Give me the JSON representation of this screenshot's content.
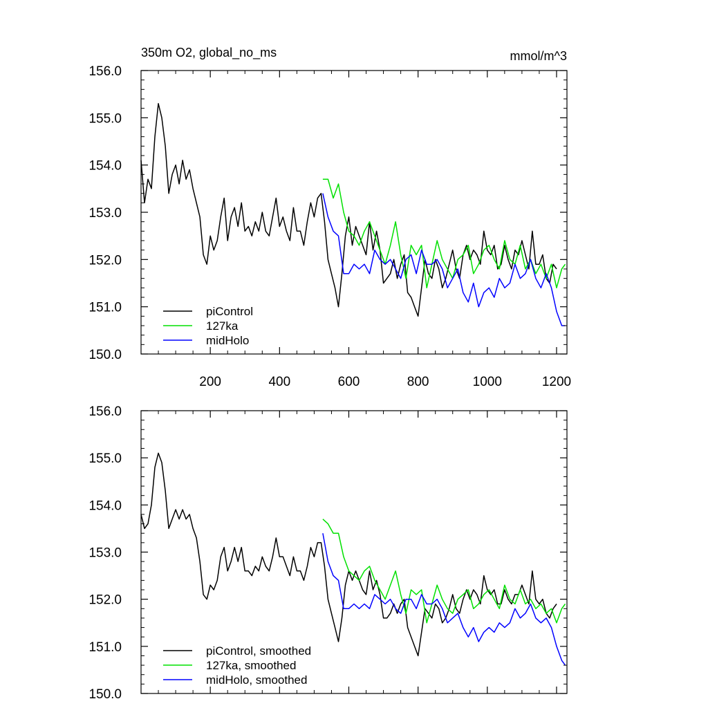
{
  "chart_data": [
    {
      "type": "line",
      "title": "350m O2, global_no_ms",
      "units": "mmol/m^3",
      "ylim": [
        150,
        156
      ],
      "xlim": [
        0,
        1230
      ],
      "yticks": [
        "150.0",
        "151.0",
        "152.0",
        "153.0",
        "154.0",
        "155.0",
        "156.0"
      ],
      "ytick_values": [
        150,
        151,
        152,
        153,
        154,
        155,
        156
      ],
      "xticks": [
        "200",
        "400",
        "600",
        "800",
        "1000",
        "1200"
      ],
      "xtick_values": [
        200,
        400,
        600,
        800,
        1000,
        1200
      ],
      "legend_position": "bottom-left",
      "series": [
        {
          "name": "piControl",
          "color": "#000000",
          "x": [
            0,
            10,
            20,
            30,
            40,
            50,
            60,
            70,
            80,
            90,
            100,
            110,
            120,
            130,
            140,
            150,
            160,
            170,
            180,
            190,
            200,
            210,
            220,
            230,
            240,
            250,
            260,
            270,
            280,
            290,
            300,
            310,
            320,
            330,
            340,
            350,
            360,
            370,
            380,
            390,
            400,
            410,
            420,
            430,
            440,
            450,
            460,
            470,
            480,
            490,
            500,
            510,
            520,
            530,
            540,
            550,
            560,
            570,
            580,
            590,
            600,
            610,
            620,
            630,
            640,
            650,
            660,
            670,
            680,
            690,
            700,
            710,
            720,
            730,
            740,
            750,
            760,
            770,
            780,
            790,
            800,
            810,
            820,
            830,
            840,
            850,
            860,
            870,
            880,
            890,
            900,
            910,
            920,
            930,
            940,
            950,
            960,
            970,
            980,
            990,
            1000,
            1010,
            1020,
            1030,
            1040,
            1050,
            1060,
            1070,
            1080,
            1090,
            1100,
            1110,
            1120,
            1130,
            1140,
            1150,
            1160,
            1170,
            1180,
            1190,
            1200
          ],
          "values": [
            154.1,
            153.2,
            153.7,
            153.5,
            154.6,
            155.3,
            155.0,
            154.4,
            153.4,
            153.8,
            154.0,
            153.6,
            154.1,
            153.7,
            153.9,
            153.5,
            153.2,
            152.9,
            152.1,
            151.9,
            152.5,
            152.2,
            152.4,
            152.9,
            153.3,
            152.4,
            152.9,
            153.1,
            152.7,
            153.2,
            152.6,
            152.7,
            152.5,
            152.8,
            152.6,
            153.0,
            152.6,
            152.5,
            152.9,
            153.3,
            152.7,
            152.9,
            152.6,
            152.4,
            153.1,
            152.6,
            152.6,
            152.3,
            152.8,
            153.2,
            152.9,
            153.3,
            153.4,
            152.8,
            152.0,
            151.7,
            151.4,
            151.0,
            151.7,
            152.5,
            152.9,
            152.3,
            152.7,
            152.5,
            152.3,
            152.1,
            152.8,
            152.2,
            152.6,
            152.2,
            151.5,
            151.6,
            151.7,
            152.0,
            151.6,
            151.9,
            152.1,
            151.3,
            151.2,
            151.0,
            150.8,
            151.4,
            152.0,
            151.7,
            151.6,
            152.0,
            151.8,
            151.4,
            151.6,
            151.9,
            152.2,
            151.8,
            151.6,
            152.1,
            152.3,
            152.0,
            152.2,
            152.1,
            151.9,
            152.6,
            152.2,
            152.1,
            152.3,
            151.8,
            151.9,
            152.3,
            152.0,
            151.8,
            152.2,
            152.1,
            152.4,
            152.1,
            151.8,
            152.6,
            151.9,
            151.9,
            152.1,
            151.6,
            151.5,
            151.9,
            151.8
          ]
        },
        {
          "name": "127ka",
          "color": "#00e000",
          "x": [
            525,
            540,
            555,
            570,
            585,
            600,
            615,
            630,
            645,
            660,
            675,
            690,
            705,
            720,
            735,
            750,
            765,
            780,
            795,
            810,
            825,
            840,
            855,
            870,
            885,
            900,
            915,
            930,
            945,
            960,
            975,
            990,
            1005,
            1020,
            1035,
            1050,
            1065,
            1080,
            1095,
            1110,
            1125,
            1140,
            1155,
            1170,
            1185,
            1200,
            1215,
            1225
          ],
          "values": [
            153.7,
            153.7,
            153.3,
            153.6,
            153.0,
            152.6,
            152.5,
            152.3,
            152.6,
            152.8,
            152.5,
            152.2,
            151.9,
            152.3,
            152.8,
            152.1,
            151.6,
            152.3,
            152.1,
            152.3,
            151.4,
            151.9,
            152.4,
            152.0,
            151.8,
            151.6,
            152.0,
            152.1,
            152.3,
            151.7,
            151.9,
            152.2,
            152.3,
            152.0,
            151.8,
            152.4,
            152.0,
            151.9,
            152.3,
            151.8,
            152.0,
            151.7,
            151.9,
            151.6,
            151.9,
            151.4,
            151.8,
            151.9
          ]
        },
        {
          "name": "midHolo",
          "color": "#0000ff",
          "x": [
            525,
            540,
            555,
            570,
            585,
            600,
            615,
            630,
            645,
            660,
            675,
            690,
            705,
            720,
            735,
            750,
            765,
            780,
            795,
            810,
            825,
            840,
            855,
            870,
            885,
            900,
            915,
            930,
            945,
            960,
            975,
            990,
            1005,
            1020,
            1035,
            1050,
            1065,
            1080,
            1095,
            1110,
            1125,
            1140,
            1155,
            1170,
            1185,
            1200,
            1215,
            1225
          ],
          "values": [
            153.4,
            152.9,
            152.6,
            152.5,
            151.7,
            151.7,
            151.9,
            151.8,
            151.9,
            151.7,
            152.2,
            152.0,
            151.9,
            152.0,
            151.8,
            151.6,
            152.0,
            152.1,
            151.7,
            152.2,
            151.9,
            151.9,
            152.0,
            151.8,
            151.4,
            151.6,
            151.8,
            151.3,
            151.1,
            151.5,
            151.0,
            151.3,
            151.4,
            151.2,
            151.6,
            151.4,
            151.5,
            151.9,
            151.6,
            151.7,
            152.0,
            151.6,
            151.4,
            151.7,
            151.4,
            150.9,
            150.6,
            150.6
          ]
        }
      ]
    },
    {
      "type": "line",
      "ylim": [
        150,
        156
      ],
      "xlim": [
        0,
        1230
      ],
      "yticks": [
        "150.0",
        "151.0",
        "152.0",
        "153.0",
        "154.0",
        "155.0",
        "156.0"
      ],
      "ytick_values": [
        150,
        151,
        152,
        153,
        154,
        155,
        156
      ],
      "legend_position": "bottom-left",
      "series": [
        {
          "name": "piControl, smoothed",
          "color": "#000000",
          "x": [
            0,
            10,
            20,
            30,
            40,
            50,
            60,
            70,
            80,
            90,
            100,
            110,
            120,
            130,
            140,
            150,
            160,
            170,
            180,
            190,
            200,
            210,
            220,
            230,
            240,
            250,
            260,
            270,
            280,
            290,
            300,
            310,
            320,
            330,
            340,
            350,
            360,
            370,
            380,
            390,
            400,
            410,
            420,
            430,
            440,
            450,
            460,
            470,
            480,
            490,
            500,
            510,
            520,
            530,
            540,
            550,
            560,
            570,
            580,
            590,
            600,
            610,
            620,
            630,
            640,
            650,
            660,
            670,
            680,
            690,
            700,
            710,
            720,
            730,
            740,
            750,
            760,
            770,
            780,
            790,
            800,
            810,
            820,
            830,
            840,
            850,
            860,
            870,
            880,
            890,
            900,
            910,
            920,
            930,
            940,
            950,
            960,
            970,
            980,
            990,
            1000,
            1010,
            1020,
            1030,
            1040,
            1050,
            1060,
            1070,
            1080,
            1090,
            1100,
            1110,
            1120,
            1130,
            1140,
            1150,
            1160,
            1170,
            1180,
            1190,
            1200
          ],
          "values": [
            153.8,
            153.5,
            153.6,
            154.0,
            154.8,
            155.1,
            154.9,
            154.3,
            153.5,
            153.7,
            153.9,
            153.7,
            153.9,
            153.7,
            153.8,
            153.5,
            153.3,
            152.8,
            152.1,
            152.0,
            152.3,
            152.2,
            152.4,
            152.9,
            153.1,
            152.6,
            152.8,
            153.1,
            152.8,
            153.1,
            152.6,
            152.6,
            152.5,
            152.7,
            152.6,
            152.9,
            152.7,
            152.6,
            152.9,
            153.3,
            152.9,
            152.9,
            152.7,
            152.5,
            152.9,
            152.6,
            152.6,
            152.4,
            152.7,
            153.1,
            152.9,
            153.2,
            153.2,
            152.7,
            152.0,
            151.7,
            151.4,
            151.1,
            151.6,
            152.3,
            152.6,
            152.4,
            152.6,
            152.4,
            152.2,
            152.1,
            152.6,
            152.2,
            152.4,
            152.1,
            151.6,
            151.6,
            151.7,
            151.9,
            151.7,
            151.9,
            152.0,
            151.4,
            151.2,
            151.0,
            150.8,
            151.3,
            151.8,
            151.7,
            151.6,
            151.9,
            151.8,
            151.5,
            151.6,
            151.8,
            152.1,
            151.8,
            151.7,
            152.0,
            152.2,
            152.0,
            152.2,
            152.1,
            151.9,
            152.5,
            152.2,
            152.1,
            152.2,
            151.9,
            151.9,
            152.2,
            152.0,
            151.9,
            152.1,
            152.1,
            152.3,
            152.1,
            151.9,
            152.6,
            152.0,
            151.9,
            152.0,
            151.7,
            151.6,
            151.8,
            151.9
          ]
        },
        {
          "name": "127ka, smoothed",
          "color": "#00e000",
          "x": [
            525,
            540,
            555,
            570,
            585,
            600,
            615,
            630,
            645,
            660,
            675,
            690,
            705,
            720,
            735,
            750,
            765,
            780,
            795,
            810,
            825,
            840,
            855,
            870,
            885,
            900,
            915,
            930,
            945,
            960,
            975,
            990,
            1005,
            1020,
            1035,
            1050,
            1065,
            1080,
            1095,
            1110,
            1125,
            1140,
            1155,
            1170,
            1185,
            1200,
            1215,
            1225
          ],
          "values": [
            153.7,
            153.6,
            153.4,
            153.4,
            152.9,
            152.6,
            152.5,
            152.4,
            152.6,
            152.7,
            152.4,
            152.2,
            152.0,
            152.3,
            152.6,
            152.1,
            151.7,
            152.2,
            152.1,
            152.2,
            151.5,
            151.9,
            152.3,
            152.0,
            151.8,
            151.7,
            152.0,
            152.1,
            152.2,
            151.8,
            151.9,
            152.1,
            152.2,
            152.0,
            151.8,
            152.3,
            152.0,
            151.9,
            152.2,
            151.9,
            152.0,
            151.8,
            151.9,
            151.7,
            151.8,
            151.5,
            151.8,
            151.9
          ]
        },
        {
          "name": "midHolo, smoothed",
          "color": "#0000ff",
          "x": [
            525,
            540,
            555,
            570,
            585,
            600,
            615,
            630,
            645,
            660,
            675,
            690,
            705,
            720,
            735,
            750,
            765,
            780,
            795,
            810,
            825,
            840,
            855,
            870,
            885,
            900,
            915,
            930,
            945,
            960,
            975,
            990,
            1005,
            1020,
            1035,
            1050,
            1065,
            1080,
            1095,
            1110,
            1125,
            1140,
            1155,
            1170,
            1185,
            1200,
            1215,
            1225
          ],
          "values": [
            153.4,
            152.8,
            152.5,
            152.4,
            151.8,
            151.8,
            151.9,
            151.8,
            151.9,
            151.8,
            152.1,
            152.0,
            151.9,
            152.0,
            151.8,
            151.7,
            152.0,
            152.0,
            151.8,
            152.1,
            151.9,
            151.9,
            152.0,
            151.8,
            151.5,
            151.6,
            151.7,
            151.4,
            151.2,
            151.4,
            151.1,
            151.3,
            151.4,
            151.3,
            151.5,
            151.4,
            151.5,
            151.8,
            151.6,
            151.7,
            151.9,
            151.6,
            151.5,
            151.6,
            151.4,
            151.0,
            150.7,
            150.6
          ]
        }
      ]
    }
  ]
}
